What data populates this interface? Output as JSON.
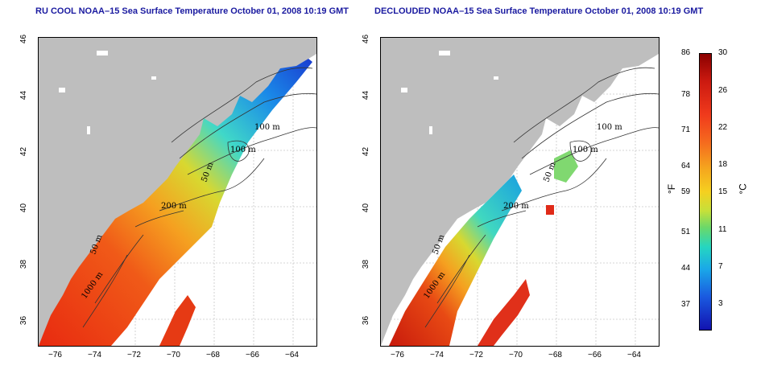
{
  "titles": {
    "left": "RU COOL NOAA–15 Sea Surface Temperature October 01, 2008 10:19 GMT",
    "right": "DECLOUDED NOAA–15 Sea Surface Temperature October 01, 2008 10:19 GMT"
  },
  "axes": {
    "x_ticks": [
      "−76",
      "−74",
      "−72",
      "−70",
      "−68",
      "−66",
      "−64"
    ],
    "y_ticks": [
      "46",
      "44",
      "42",
      "40",
      "38",
      "36"
    ]
  },
  "contour_labels": [
    "100 m",
    "100 m",
    "50 m",
    "200 m",
    "50 m",
    "1000 m"
  ],
  "colorbar": {
    "fahrenheit_ticks": [
      "86",
      "78",
      "71",
      "64",
      "59",
      "51",
      "44",
      "37"
    ],
    "celsius_ticks": [
      "30",
      "26",
      "22",
      "18",
      "15",
      "11",
      "7",
      "3"
    ],
    "fahrenheit_unit": "°F",
    "celsius_unit": "°C"
  },
  "colors": {
    "land": "#bebebe",
    "title": "#1a1aa0",
    "warm": "#d4200f",
    "cool": "#1a4ad0"
  }
}
